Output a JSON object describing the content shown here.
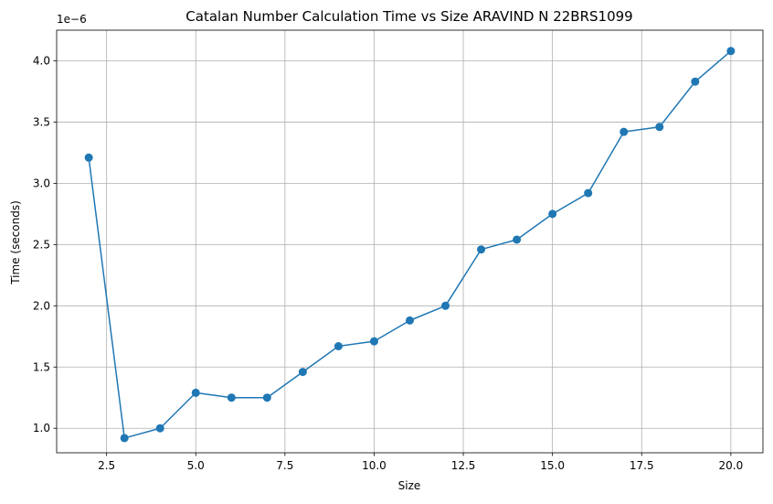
{
  "chart_data": {
    "type": "line",
    "title": "Catalan Number Calculation Time vs Size ARAVIND N 22BRS1099",
    "xlabel": "Size",
    "ylabel": "Time (seconds)",
    "y_offset_label": "1e−6",
    "xlim": [
      1.1,
      20.9
    ],
    "ylim": [
      0.8,
      4.25
    ],
    "x_ticks": [
      2.5,
      5.0,
      7.5,
      10.0,
      12.5,
      15.0,
      17.5,
      20.0
    ],
    "x_tick_labels": [
      "2.5",
      "5.0",
      "7.5",
      "10.0",
      "12.5",
      "15.0",
      "17.5",
      "20.0"
    ],
    "y_ticks": [
      1.0,
      1.5,
      2.0,
      2.5,
      3.0,
      3.5,
      4.0
    ],
    "y_tick_labels": [
      "1.0",
      "1.5",
      "2.0",
      "2.5",
      "3.0",
      "3.5",
      "4.0"
    ],
    "grid": true,
    "marker": "circle",
    "series": [
      {
        "color": "#1f77b4",
        "x": [
          2,
          3,
          4,
          5,
          6,
          7,
          8,
          9,
          10,
          11,
          12,
          13,
          14,
          15,
          16,
          17,
          18,
          19,
          20
        ],
        "values": [
          3.21,
          0.92,
          1.0,
          1.29,
          1.25,
          1.25,
          1.46,
          1.67,
          1.71,
          1.88,
          2.0,
          2.46,
          2.54,
          2.75,
          2.92,
          3.42,
          3.46,
          3.83,
          4.08
        ]
      }
    ]
  }
}
